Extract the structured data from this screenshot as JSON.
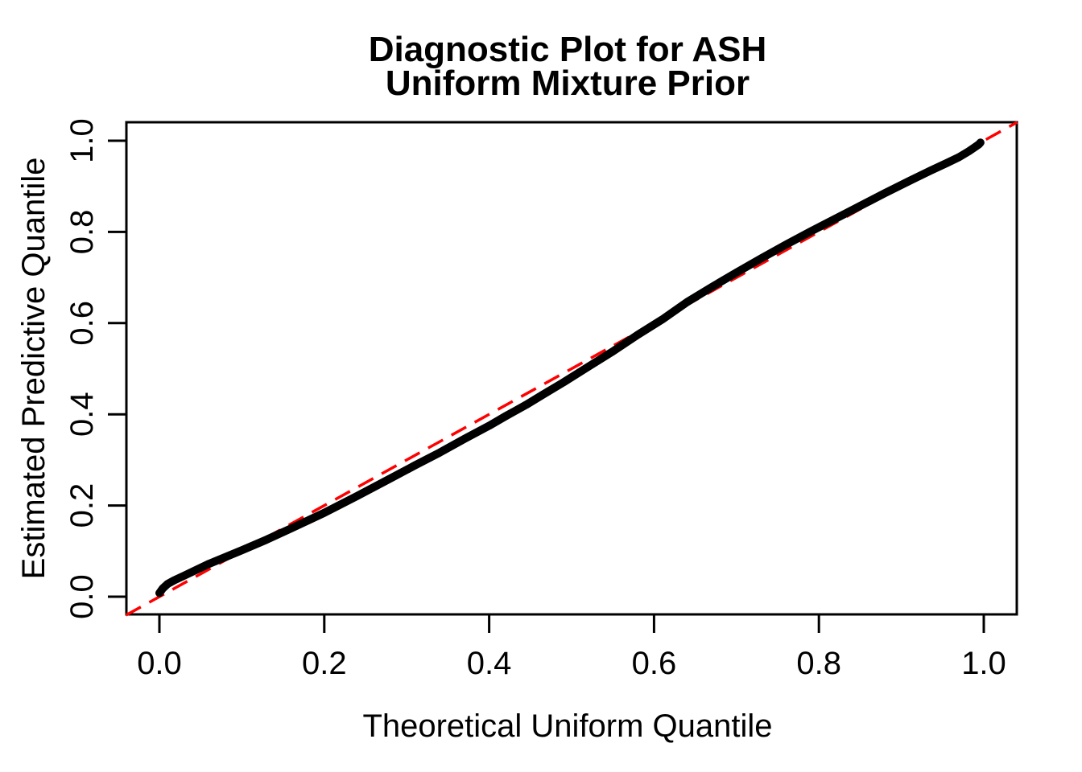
{
  "chart_data": {
    "type": "line",
    "title_lines": [
      "Diagnostic Plot for ASH",
      "Uniform Mixture Prior"
    ],
    "xlabel": "Theoretical Uniform Quantile",
    "ylabel": "Estimated Predictive Quantile",
    "xlim": [
      0.0,
      1.0
    ],
    "ylim": [
      0.0,
      1.0
    ],
    "axis_padding_fraction": 0.04,
    "grid": false,
    "legend_position": "none",
    "x_ticks": [
      0.0,
      0.2,
      0.4,
      0.6,
      0.8,
      1.0
    ],
    "x_tick_labels": [
      "0.0",
      "0.2",
      "0.4",
      "0.6",
      "0.8",
      "1.0"
    ],
    "y_ticks": [
      0.0,
      0.2,
      0.4,
      0.6,
      0.8,
      1.0
    ],
    "y_tick_labels": [
      "0.0",
      "0.2",
      "0.4",
      "0.6",
      "0.8",
      "1.0"
    ],
    "series": [
      {
        "name": "estimated-predictive-quantile-curve",
        "type": "line",
        "color": "#000000",
        "points": [
          [
            0.0,
            0.008
          ],
          [
            0.004,
            0.018
          ],
          [
            0.01,
            0.028
          ],
          [
            0.018,
            0.036
          ],
          [
            0.03,
            0.046
          ],
          [
            0.045,
            0.059
          ],
          [
            0.06,
            0.072
          ],
          [
            0.08,
            0.087
          ],
          [
            0.1,
            0.102
          ],
          [
            0.13,
            0.125
          ],
          [
            0.16,
            0.15
          ],
          [
            0.2,
            0.184
          ],
          [
            0.24,
            0.221
          ],
          [
            0.28,
            0.259
          ],
          [
            0.31,
            0.288
          ],
          [
            0.34,
            0.316
          ],
          [
            0.37,
            0.346
          ],
          [
            0.4,
            0.375
          ],
          [
            0.42,
            0.396
          ],
          [
            0.445,
            0.421
          ],
          [
            0.465,
            0.443
          ],
          [
            0.49,
            0.47
          ],
          [
            0.52,
            0.504
          ],
          [
            0.55,
            0.538
          ],
          [
            0.58,
            0.574
          ],
          [
            0.61,
            0.608
          ],
          [
            0.64,
            0.646
          ],
          [
            0.67,
            0.679
          ],
          [
            0.7,
            0.711
          ],
          [
            0.73,
            0.742
          ],
          [
            0.76,
            0.772
          ],
          [
            0.79,
            0.801
          ],
          [
            0.82,
            0.829
          ],
          [
            0.85,
            0.857
          ],
          [
            0.88,
            0.885
          ],
          [
            0.91,
            0.912
          ],
          [
            0.935,
            0.934
          ],
          [
            0.955,
            0.951
          ],
          [
            0.97,
            0.964
          ],
          [
            0.982,
            0.977
          ],
          [
            0.99,
            0.987
          ],
          [
            0.994,
            0.992
          ],
          [
            0.996,
            0.996
          ]
        ]
      }
    ],
    "reference_line": {
      "name": "identity-line",
      "equation": "y = x",
      "style": "dashed",
      "color": "#FF0000",
      "from": [
        0.0,
        0.0
      ],
      "to": [
        1.0,
        1.0
      ]
    }
  }
}
